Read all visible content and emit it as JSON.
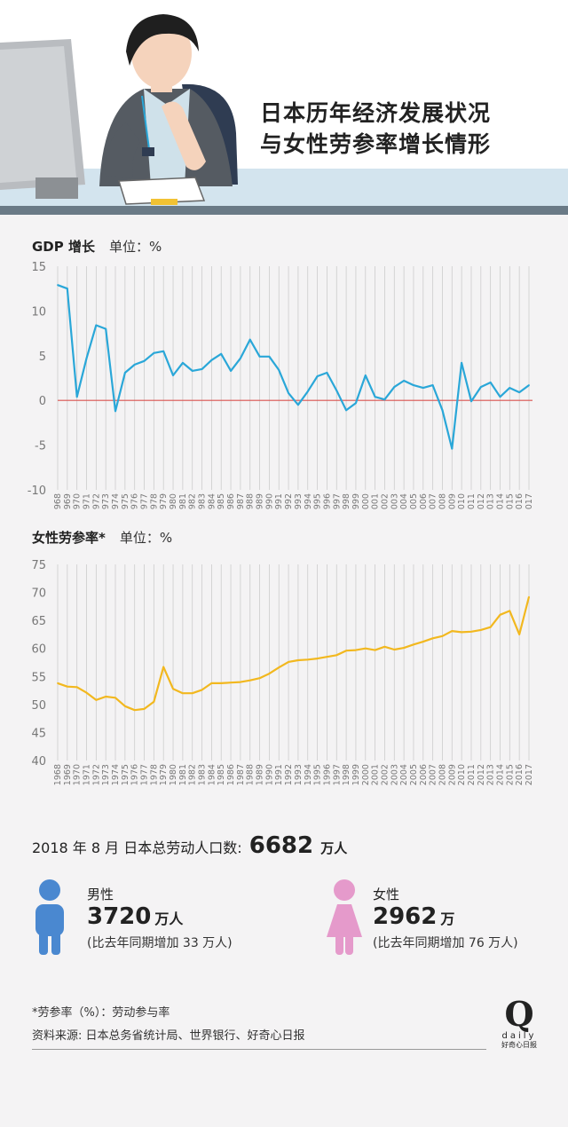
{
  "header": {
    "title_line1": "日本历年经济发展状况",
    "title_line2": "与女性劳参率增长情形"
  },
  "colors": {
    "gdp_line": "#2aa7d8",
    "zero_line": "#d9534f",
    "flpr_line": "#f2b81f",
    "male": "#4a88d0",
    "female": "#e59acb",
    "header_band": "#d3e4ee",
    "gridline": "#cccccc"
  },
  "gdp": {
    "label": "GDP 增长",
    "unit_label": "单位：%"
  },
  "flpr": {
    "label": "女性劳参率*",
    "unit_label": "单位：%"
  },
  "chart_data": [
    {
      "type": "line",
      "x": [
        "1968",
        "1969",
        "1970",
        "1971",
        "1972",
        "1973",
        "1974",
        "1975",
        "1976",
        "1977",
        "1978",
        "1979",
        "1980",
        "1981",
        "1982",
        "1983",
        "1984",
        "1985",
        "1986",
        "1987",
        "1988",
        "1989",
        "1990",
        "1991",
        "1992",
        "1993",
        "1994",
        "1995",
        "1996",
        "1997",
        "1998",
        "1999",
        "2000",
        "2001",
        "2002",
        "2003",
        "2004",
        "2005",
        "2006",
        "2007",
        "2008",
        "2009",
        "2010",
        "2011",
        "2012",
        "2013",
        "2014",
        "2015",
        "2016",
        "2017"
      ],
      "series": [
        {
          "values": [
            12.9,
            12.5,
            0.4,
            4.7,
            8.4,
            8.0,
            -1.2,
            3.1,
            4.0,
            4.4,
            5.3,
            5.5,
            2.8,
            4.2,
            3.3,
            3.5,
            4.5,
            5.2,
            3.3,
            4.7,
            6.8,
            4.9,
            4.9,
            3.4,
            0.8,
            -0.5,
            1.0,
            2.7,
            3.1,
            1.1,
            -1.1,
            -0.3,
            2.8,
            0.4,
            0.1,
            1.5,
            2.2,
            1.7,
            1.4,
            1.7,
            -1.1,
            -5.4,
            4.2,
            -0.1,
            1.5,
            2.0,
            0.4,
            1.4,
            0.9,
            1.7
          ]
        }
      ],
      "ylim": [
        -10,
        15
      ],
      "yticks": [
        15,
        10,
        5,
        0,
        -5,
        -10
      ],
      "baseline": 0
    },
    {
      "type": "line",
      "x": [
        "1968",
        "1969",
        "1970",
        "1971",
        "1972",
        "1973",
        "1974",
        "1975",
        "1976",
        "1977",
        "1978",
        "1979",
        "1980",
        "1981",
        "1982",
        "1983",
        "1984",
        "1985",
        "1986",
        "1987",
        "1988",
        "1989",
        "1990",
        "1991",
        "1992",
        "1993",
        "1994",
        "1995",
        "1996",
        "1997",
        "1998",
        "1999",
        "2000",
        "2001",
        "2002",
        "2003",
        "2004",
        "2005",
        "2006",
        "2007",
        "2008",
        "2009",
        "2010",
        "2011",
        "2012",
        "2013",
        "2014",
        "2015",
        "2016",
        "2017"
      ],
      "series": [
        {
          "values": [
            53.8,
            53.2,
            53.1,
            52.1,
            50.8,
            51.4,
            51.2,
            49.7,
            49.0,
            49.2,
            50.5,
            56.7,
            52.8,
            52.0,
            52.0,
            52.6,
            53.8,
            53.8,
            53.9,
            54.0,
            54.3,
            54.7,
            55.5,
            56.6,
            57.6,
            57.9,
            58.0,
            58.2,
            58.5,
            58.8,
            59.6,
            59.7,
            60.0,
            59.7,
            60.3,
            59.8,
            60.1,
            60.7,
            61.2,
            61.8,
            62.2,
            63.1,
            62.9,
            63.0,
            63.3,
            63.8,
            66.0,
            66.7,
            62.5,
            69.2
          ]
        }
      ],
      "ylim": [
        40,
        75
      ],
      "yticks": [
        75,
        70,
        65,
        60,
        55,
        50,
        45,
        40
      ]
    }
  ],
  "total": {
    "prefix": "2018 年 8 月 日本总劳动人口数:",
    "value": "6682",
    "unit": "万人"
  },
  "male": {
    "label": "男性",
    "value": "3720",
    "unit": "万人",
    "note": "(比去年同期增加 33 万人)",
    "icon": "male-person-icon"
  },
  "female": {
    "label": "女性",
    "value": "2962",
    "unit": "万",
    "note": "(比去年同期增加 76 万人)",
    "icon": "female-person-icon"
  },
  "footer": {
    "footnote": "*劳参率（%）：劳动参与率",
    "source": "资料来源: 日本总务省统计局、世界银行、好奇心日报",
    "logo_letter": "Q",
    "logo_word": "daily",
    "logo_cn": "好奇心日报"
  }
}
